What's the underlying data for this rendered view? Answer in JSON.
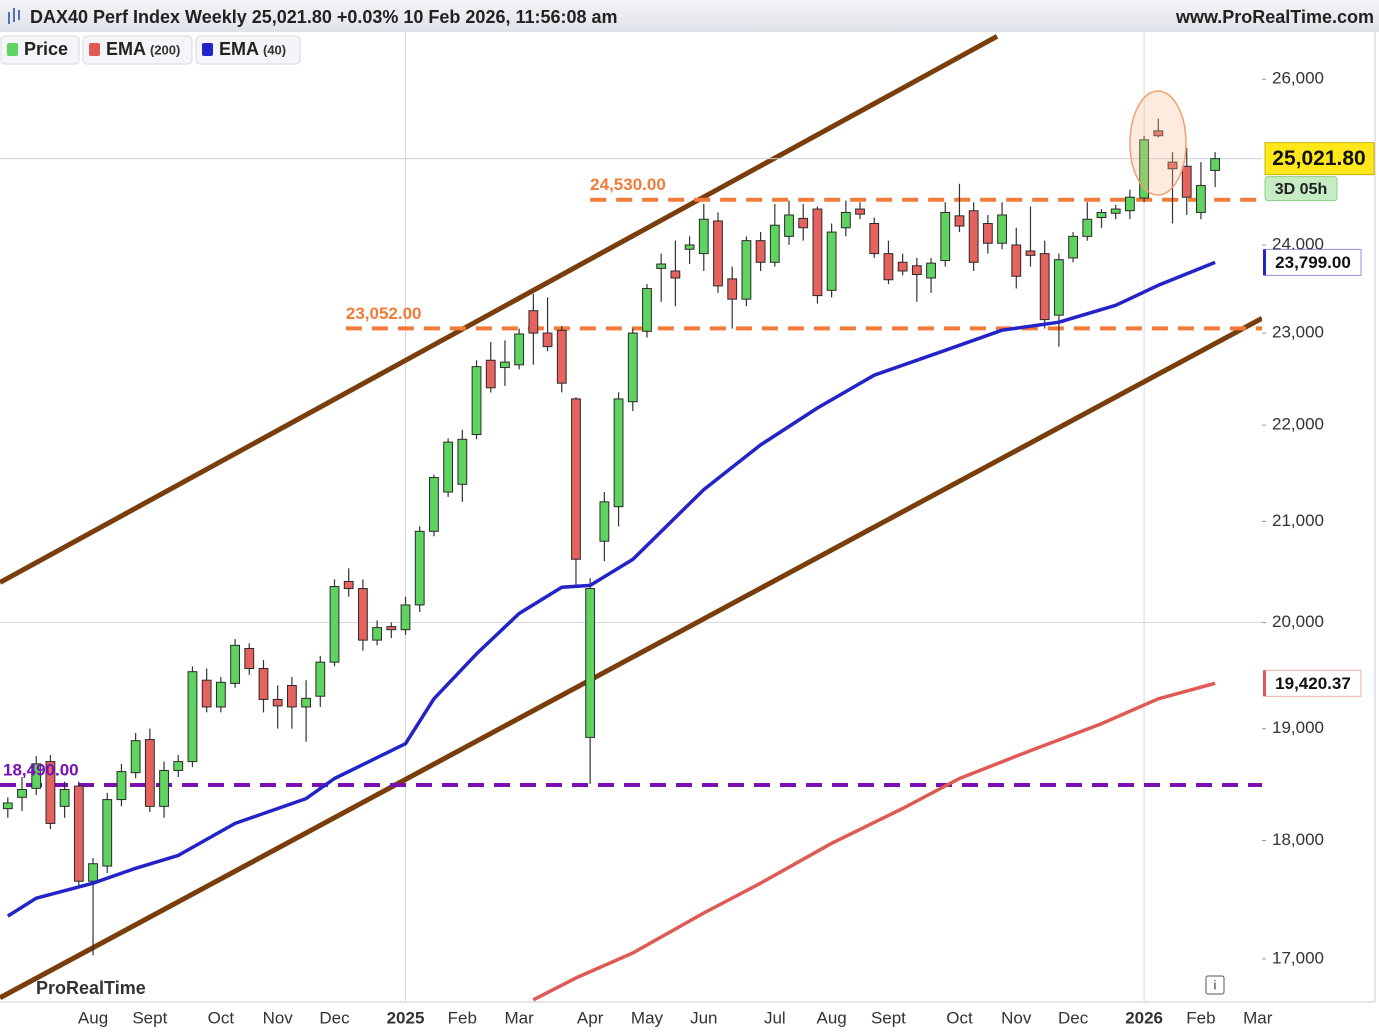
{
  "chart_data": {
    "type": "candlestick",
    "title": "DAX40 Perf Index Weekly 25,021.80 +0.03% 10 Feb 2026, 11:56:08 am",
    "source": "www.ProRealTime.com",
    "watermark": "ProRealTime",
    "log_scale": true,
    "ylim": [
      16650,
      26600
    ],
    "xlim": [
      -0.55,
      88.3
    ],
    "yticks": [
      {
        "value": 17000,
        "label": "17,000"
      },
      {
        "value": 18000,
        "label": "18,000"
      },
      {
        "value": 19000,
        "label": "19,000"
      },
      {
        "value": 20000,
        "label": "20,000",
        "major": true
      },
      {
        "value": 21000,
        "label": "21,000"
      },
      {
        "value": 22000,
        "label": "22,000"
      },
      {
        "value": 23000,
        "label": "23,000"
      },
      {
        "value": 24000,
        "label": "24,000"
      },
      {
        "value": 26000,
        "label": "26,000"
      }
    ],
    "xticks": [
      {
        "value": 6,
        "label": "Aug"
      },
      {
        "value": 10,
        "label": "Sept"
      },
      {
        "value": 15,
        "label": "Oct"
      },
      {
        "value": 19,
        "label": "Nov"
      },
      {
        "value": 23,
        "label": "Dec"
      },
      {
        "value": 28,
        "label": "2025",
        "major": true
      },
      {
        "value": 32,
        "label": "Feb"
      },
      {
        "value": 36,
        "label": "Mar"
      },
      {
        "value": 41,
        "label": "Apr"
      },
      {
        "value": 45,
        "label": "May"
      },
      {
        "value": 49,
        "label": "Jun"
      },
      {
        "value": 54,
        "label": "Jul"
      },
      {
        "value": 58,
        "label": "Aug"
      },
      {
        "value": 62,
        "label": "Sept"
      },
      {
        "value": 67,
        "label": "Oct"
      },
      {
        "value": 71,
        "label": "Nov"
      },
      {
        "value": 75,
        "label": "Dec"
      },
      {
        "value": 80,
        "label": "2026",
        "major": true
      },
      {
        "value": 84,
        "label": "Feb"
      },
      {
        "value": 88,
        "label": "Mar"
      }
    ],
    "series": [
      {
        "name": "Price",
        "up_color": "#5fd35f",
        "down_color": "#e5625e",
        "color": "#5fd35f",
        "open": [
          18280,
          18380,
          18460,
          18700,
          18300,
          18480,
          17650,
          17780,
          18360,
          18600,
          18900,
          18300,
          18620,
          18700,
          19450,
          19200,
          19420,
          19750,
          19560,
          19270,
          19400,
          19200,
          19300,
          19620,
          20400,
          20330,
          19830,
          19960,
          19930,
          20170,
          20900,
          21300,
          21380,
          21900,
          22700,
          22620,
          22650,
          23250,
          23000,
          23030,
          22280,
          18920,
          20800,
          21150,
          22250,
          23020,
          23730,
          23700,
          23950,
          23900,
          24280,
          23610,
          23380,
          24050,
          23800,
          24100,
          24310,
          24420,
          23480,
          24200,
          24420,
          24250,
          23900,
          23800,
          23760,
          23620,
          23820,
          24340,
          24400,
          24250,
          24020,
          24000,
          23930,
          23900,
          23200,
          23850,
          24100,
          24320,
          24370,
          24400,
          24550,
          25360,
          24980,
          24930,
          24380,
          24880
        ],
        "high": [
          18380,
          18560,
          18750,
          18760,
          18520,
          18520,
          17850,
          18420,
          18680,
          18960,
          19000,
          18700,
          18760,
          19580,
          19560,
          19480,
          19840,
          19800,
          19640,
          19400,
          19480,
          19450,
          19680,
          20420,
          20530,
          20420,
          20020,
          20000,
          20250,
          20950,
          21480,
          21860,
          21950,
          22700,
          22900,
          22920,
          23050,
          23440,
          23400,
          23080,
          22300,
          20430,
          21300,
          22350,
          23050,
          23550,
          23900,
          24050,
          24100,
          24480,
          24380,
          23750,
          24100,
          24150,
          24480,
          24520,
          24480,
          24450,
          24250,
          24520,
          24500,
          24320,
          24050,
          23900,
          23850,
          23850,
          24500,
          24720,
          24500,
          24350,
          24500,
          24200,
          24450,
          24050,
          23900,
          24150,
          24500,
          24420,
          24470,
          24650,
          25300,
          25510,
          25100,
          25150,
          24980,
          25100
        ],
        "low": [
          18200,
          18260,
          18400,
          18100,
          18200,
          17600,
          17030,
          17720,
          18300,
          18550,
          18250,
          18200,
          18560,
          18650,
          19150,
          19150,
          19380,
          19500,
          19150,
          19000,
          19000,
          18880,
          19200,
          19580,
          20250,
          19730,
          19780,
          19850,
          19880,
          20100,
          20850,
          21250,
          21200,
          21850,
          22350,
          22420,
          22600,
          22650,
          22800,
          22350,
          20350,
          18500,
          20600,
          20950,
          22150,
          22950,
          23350,
          23300,
          23780,
          23700,
          23450,
          23050,
          23300,
          23700,
          23750,
          24000,
          24050,
          23330,
          23400,
          24100,
          24300,
          23850,
          23550,
          23650,
          23350,
          23450,
          23750,
          24150,
          23700,
          23900,
          23950,
          23500,
          23750,
          23050,
          22850,
          23800,
          24050,
          24200,
          24300,
          24300,
          24500,
          25280,
          24250,
          24350,
          24300,
          24680
        ],
        "close": [
          18330,
          18450,
          18680,
          18150,
          18450,
          17650,
          17800,
          18360,
          18610,
          18890,
          18300,
          18620,
          18700,
          19530,
          19200,
          19430,
          19780,
          19560,
          19270,
          19210,
          19200,
          19280,
          19620,
          20350,
          20330,
          19830,
          19950,
          19930,
          20170,
          20900,
          21450,
          21820,
          21850,
          22630,
          22400,
          22680,
          22990,
          23000,
          22850,
          22450,
          20620,
          20330,
          21200,
          22280,
          23000,
          23500,
          23780,
          23620,
          24000,
          24300,
          23530,
          23380,
          24050,
          23800,
          24230,
          24350,
          24200,
          23420,
          24150,
          24380,
          24360,
          23900,
          23600,
          23700,
          23660,
          23790,
          24380,
          24220,
          23800,
          24020,
          24350,
          23640,
          23880,
          23150,
          23830,
          24100,
          24300,
          24380,
          24420,
          24560,
          25250,
          25300,
          24900,
          24560,
          24700,
          25021.8
        ],
        "tag": {
          "value": 25021.8,
          "label": "25,021.80",
          "countdown": "3D 05h"
        }
      },
      {
        "name": "EMA",
        "period": "(200)",
        "color": "#e05a55",
        "x": [
          37,
          40,
          44,
          49,
          53,
          58,
          63,
          67,
          72,
          77,
          81,
          85
        ],
        "values": [
          16668,
          16845,
          17049,
          17381,
          17633,
          17976,
          18281,
          18548,
          18800,
          19045,
          19276,
          19420.37
        ],
        "tag": {
          "value": 19420.37,
          "label": "19,420.37"
        }
      },
      {
        "name": "EMA",
        "period": "(40)",
        "color": "#2323c8",
        "x": [
          0,
          2,
          6,
          9,
          12,
          16,
          21,
          23,
          28,
          30,
          33,
          36,
          39,
          41,
          44,
          49,
          53,
          57,
          61,
          66,
          70,
          74,
          78,
          81,
          85
        ],
        "values": [
          17355,
          17506,
          17633,
          17761,
          17872,
          18150,
          18369,
          18548,
          18862,
          19276,
          19698,
          20087,
          20342,
          20361,
          20618,
          21325,
          21791,
          22183,
          22537,
          22810,
          23032,
          23121,
          23311,
          23537,
          23799
        ],
        "tag": {
          "value": 23799,
          "label": "23,799.00"
        }
      }
    ],
    "levels": [
      {
        "value": 24530,
        "label": "24,530.00",
        "color": "#f47a3a",
        "start": 41
      },
      {
        "value": 23052,
        "label": "23,052.00",
        "color": "#f47a3a",
        "start": 23.8
      },
      {
        "value": 18490,
        "label": "18,490.00",
        "color": "#7a10b4",
        "start": -0.55
      }
    ],
    "trendlines": [
      {
        "color": "#7a3e0c",
        "x": [
          -0.55,
          69.65
        ],
        "y": [
          20390,
          26544
        ]
      },
      {
        "color": "#7a3e0c",
        "x": [
          -0.55,
          88.3
        ],
        "y": [
          16684,
          23165
        ]
      }
    ]
  }
}
